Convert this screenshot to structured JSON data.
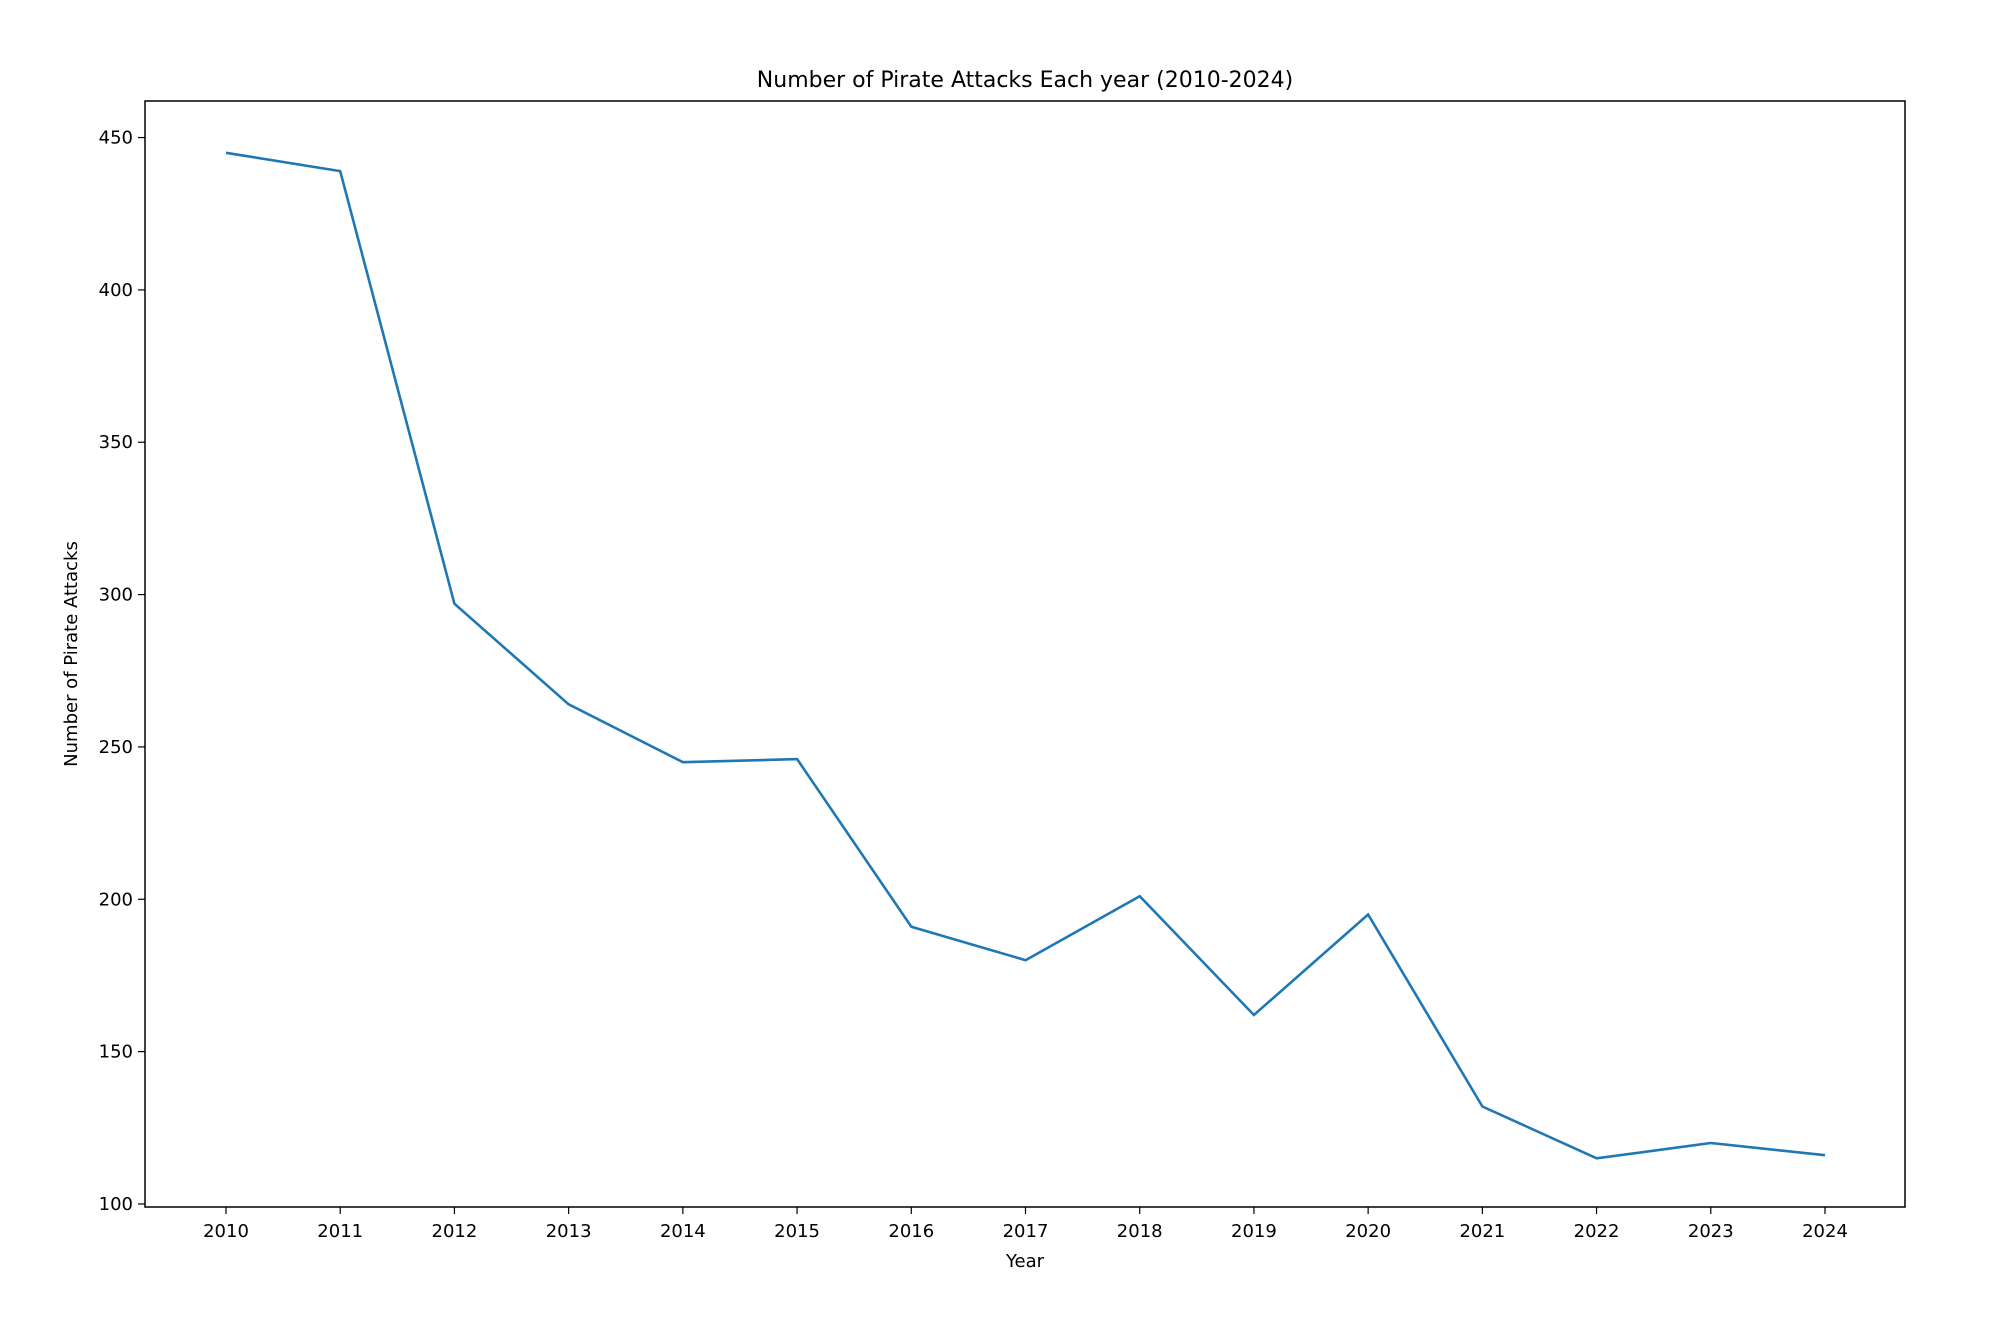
{
  "chart_data": {
    "type": "line",
    "title": "Number of Pirate Attacks Each year (2010-2024)",
    "xlabel": "Year",
    "ylabel": "Number of Pirate Attacks",
    "x": [
      "2010",
      "2011",
      "2012",
      "2013",
      "2014",
      "2015",
      "2016",
      "2017",
      "2018",
      "2019",
      "2020",
      "2021",
      "2022",
      "2023",
      "2024"
    ],
    "series": [
      {
        "values": [
          445,
          439,
          297,
          264,
          245,
          246,
          191,
          180,
          201,
          162,
          195,
          132,
          115,
          120,
          116
        ],
        "color": "#1f77b4"
      }
    ],
    "yticks": [
      "100",
      "150",
      "200",
      "250",
      "300",
      "350",
      "400",
      "450"
    ],
    "ylim": [
      99,
      462
    ],
    "grid": false,
    "legend": "none"
  }
}
